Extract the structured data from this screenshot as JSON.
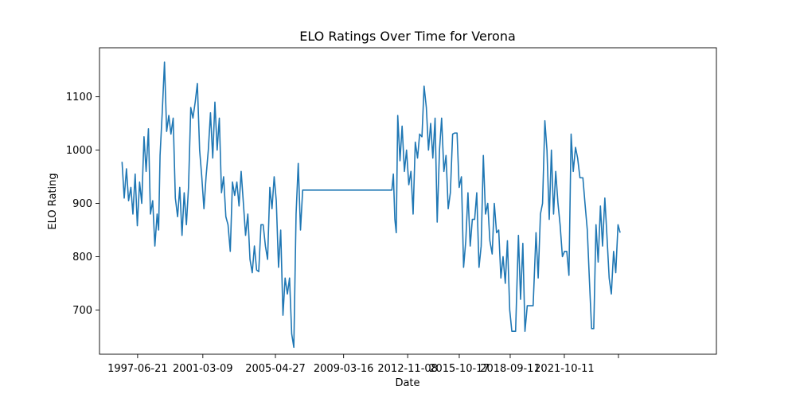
{
  "chart_data": {
    "type": "line",
    "title": "ELO Ratings Over Time for Verona",
    "xlabel": "Date",
    "ylabel": "ELO Rating",
    "xlim": [
      "1995-04-20",
      "2030-06-10"
    ],
    "ylim": [
      617,
      1192
    ],
    "x_ticks": [
      "1997-06-21",
      "2001-03-09",
      "2005-04-27",
      "2009-03-16",
      "2012-11-08",
      "2015-10-17",
      "2018-09-11",
      "2021-10-11",
      ""
    ],
    "y_ticks": [
      700,
      800,
      900,
      1000,
      1100
    ],
    "grid": false,
    "color": "#1f77b4",
    "series": [
      {
        "points": [
          [
            "1996-08-01",
            978
          ],
          [
            "1996-09-15",
            910
          ],
          [
            "1996-11-01",
            965
          ],
          [
            "1996-12-15",
            905
          ],
          [
            "1997-02-01",
            930
          ],
          [
            "1997-03-15",
            880
          ],
          [
            "1997-05-01",
            955
          ],
          [
            "1997-06-15",
            858
          ],
          [
            "1997-08-01",
            940
          ],
          [
            "1997-09-15",
            900
          ],
          [
            "1997-11-01",
            1025
          ],
          [
            "1997-12-15",
            960
          ],
          [
            "1998-02-01",
            1040
          ],
          [
            "1998-03-15",
            880
          ],
          [
            "1998-05-01",
            905
          ],
          [
            "1998-06-15",
            820
          ],
          [
            "1998-08-01",
            880
          ],
          [
            "1998-09-01",
            850
          ],
          [
            "1998-10-01",
            990
          ],
          [
            "1998-11-15",
            1070
          ],
          [
            "1999-01-01",
            1165
          ],
          [
            "1999-02-15",
            1035
          ],
          [
            "1999-04-01",
            1065
          ],
          [
            "1999-05-15",
            1030
          ],
          [
            "1999-07-01",
            1060
          ],
          [
            "1999-08-15",
            910
          ],
          [
            "1999-10-01",
            875
          ],
          [
            "1999-11-15",
            930
          ],
          [
            "2000-01-01",
            840
          ],
          [
            "2000-02-15",
            920
          ],
          [
            "2000-04-01",
            860
          ],
          [
            "2000-05-15",
            930
          ],
          [
            "2000-07-01",
            1080
          ],
          [
            "2000-08-15",
            1060
          ],
          [
            "2000-10-01",
            1090
          ],
          [
            "2000-11-15",
            1125
          ],
          [
            "2001-01-01",
            1000
          ],
          [
            "2001-02-15",
            950
          ],
          [
            "2001-04-01",
            890
          ],
          [
            "2001-05-15",
            950
          ],
          [
            "2001-07-01",
            1000
          ],
          [
            "2001-08-15",
            1070
          ],
          [
            "2001-10-01",
            985
          ],
          [
            "2001-11-15",
            1090
          ],
          [
            "2002-01-01",
            1000
          ],
          [
            "2002-02-15",
            1060
          ],
          [
            "2002-04-01",
            920
          ],
          [
            "2002-05-15",
            950
          ],
          [
            "2002-07-01",
            875
          ],
          [
            "2002-08-15",
            860
          ],
          [
            "2002-10-01",
            810
          ],
          [
            "2002-11-15",
            940
          ],
          [
            "2003-01-01",
            915
          ],
          [
            "2003-02-15",
            940
          ],
          [
            "2003-04-01",
            895
          ],
          [
            "2003-05-15",
            960
          ],
          [
            "2003-07-01",
            900
          ],
          [
            "2003-08-15",
            840
          ],
          [
            "2003-10-01",
            880
          ],
          [
            "2003-11-15",
            795
          ],
          [
            "2004-01-01",
            770
          ],
          [
            "2004-02-15",
            820
          ],
          [
            "2004-04-01",
            775
          ],
          [
            "2004-05-15",
            772
          ],
          [
            "2004-07-01",
            860
          ],
          [
            "2004-08-15",
            860
          ],
          [
            "2004-10-01",
            820
          ],
          [
            "2004-11-15",
            795
          ],
          [
            "2005-01-01",
            930
          ],
          [
            "2005-02-15",
            890
          ],
          [
            "2005-04-01",
            950
          ],
          [
            "2005-05-15",
            905
          ],
          [
            "2005-07-01",
            780
          ],
          [
            "2005-08-15",
            850
          ],
          [
            "2005-10-01",
            690
          ],
          [
            "2005-11-15",
            760
          ],
          [
            "2006-01-01",
            730
          ],
          [
            "2006-02-15",
            760
          ],
          [
            "2006-04-01",
            655
          ],
          [
            "2006-05-15",
            630
          ],
          [
            "2006-07-01",
            880
          ],
          [
            "2006-08-15",
            975
          ],
          [
            "2006-10-01",
            850
          ],
          [
            "2006-11-15",
            925
          ],
          [
            "2008-03-01",
            925
          ],
          [
            "2010-01-01",
            925
          ],
          [
            "2011-12-15",
            925
          ],
          [
            "2012-01-15",
            955
          ],
          [
            "2012-02-15",
            870
          ],
          [
            "2012-03-15",
            845
          ],
          [
            "2012-04-15",
            1065
          ],
          [
            "2012-06-01",
            980
          ],
          [
            "2012-07-15",
            1045
          ],
          [
            "2012-09-01",
            960
          ],
          [
            "2012-10-15",
            1000
          ],
          [
            "2012-12-01",
            935
          ],
          [
            "2013-01-15",
            960
          ],
          [
            "2013-03-01",
            880
          ],
          [
            "2013-04-15",
            1015
          ],
          [
            "2013-06-01",
            985
          ],
          [
            "2013-07-15",
            1030
          ],
          [
            "2013-09-01",
            1025
          ],
          [
            "2013-10-15",
            1120
          ],
          [
            "2013-12-01",
            1080
          ],
          [
            "2014-01-15",
            1000
          ],
          [
            "2014-03-01",
            1050
          ],
          [
            "2014-04-15",
            985
          ],
          [
            "2014-06-01",
            1060
          ],
          [
            "2014-07-15",
            865
          ],
          [
            "2014-09-01",
            1000
          ],
          [
            "2014-10-15",
            1060
          ],
          [
            "2014-12-01",
            960
          ],
          [
            "2015-01-15",
            990
          ],
          [
            "2015-03-01",
            890
          ],
          [
            "2015-04-15",
            920
          ],
          [
            "2015-06-01",
            1030
          ],
          [
            "2015-07-15",
            1032
          ],
          [
            "2015-09-01",
            1032
          ],
          [
            "2015-10-15",
            930
          ],
          [
            "2015-12-01",
            950
          ],
          [
            "2016-01-15",
            780
          ],
          [
            "2016-03-01",
            830
          ],
          [
            "2016-04-15",
            920
          ],
          [
            "2016-06-01",
            820
          ],
          [
            "2016-07-15",
            870
          ],
          [
            "2016-09-01",
            870
          ],
          [
            "2016-10-15",
            920
          ],
          [
            "2016-12-01",
            780
          ],
          [
            "2017-01-15",
            820
          ],
          [
            "2017-03-01",
            990
          ],
          [
            "2017-04-15",
            880
          ],
          [
            "2017-06-01",
            900
          ],
          [
            "2017-07-15",
            830
          ],
          [
            "2017-09-01",
            805
          ],
          [
            "2017-10-15",
            900
          ],
          [
            "2017-12-01",
            845
          ],
          [
            "2018-01-15",
            850
          ],
          [
            "2018-03-01",
            760
          ],
          [
            "2018-04-15",
            800
          ],
          [
            "2018-06-01",
            750
          ],
          [
            "2018-07-15",
            830
          ],
          [
            "2018-09-01",
            700
          ],
          [
            "2018-10-15",
            660
          ],
          [
            "2019-01-01",
            660
          ],
          [
            "2019-03-01",
            840
          ],
          [
            "2019-04-15",
            720
          ],
          [
            "2019-06-01",
            825
          ],
          [
            "2019-07-15",
            660
          ],
          [
            "2019-09-01",
            708
          ],
          [
            "2020-01-01",
            708
          ],
          [
            "2020-03-01",
            845
          ],
          [
            "2020-04-15",
            760
          ],
          [
            "2020-06-01",
            880
          ],
          [
            "2020-07-15",
            900
          ],
          [
            "2020-09-01",
            1055
          ],
          [
            "2020-10-15",
            1000
          ],
          [
            "2020-12-01",
            870
          ],
          [
            "2021-01-15",
            1000
          ],
          [
            "2021-03-01",
            880
          ],
          [
            "2021-04-15",
            960
          ],
          [
            "2021-06-01",
            900
          ],
          [
            "2021-07-15",
            860
          ],
          [
            "2021-09-01",
            800
          ],
          [
            "2021-10-15",
            810
          ],
          [
            "2021-12-01",
            810
          ],
          [
            "2022-01-15",
            765
          ],
          [
            "2022-03-01",
            1030
          ],
          [
            "2022-04-15",
            960
          ],
          [
            "2022-06-01",
            1005
          ],
          [
            "2022-07-15",
            985
          ],
          [
            "2022-09-01",
            948
          ],
          [
            "2022-11-01",
            948
          ],
          [
            "2022-12-15",
            900
          ],
          [
            "2023-02-01",
            850
          ],
          [
            "2023-03-15",
            760
          ],
          [
            "2023-05-01",
            665
          ],
          [
            "2023-06-15",
            665
          ],
          [
            "2023-08-01",
            860
          ],
          [
            "2023-09-15",
            790
          ],
          [
            "2023-11-01",
            895
          ],
          [
            "2023-12-15",
            820
          ],
          [
            "2024-02-01",
            910
          ],
          [
            "2024-03-15",
            840
          ],
          [
            "2024-05-01",
            760
          ],
          [
            "2024-06-15",
            730
          ],
          [
            "2024-08-01",
            810
          ],
          [
            "2024-09-15",
            770
          ],
          [
            "2024-11-01",
            860
          ],
          [
            "2024-12-15",
            845
          ]
        ]
      }
    ]
  }
}
